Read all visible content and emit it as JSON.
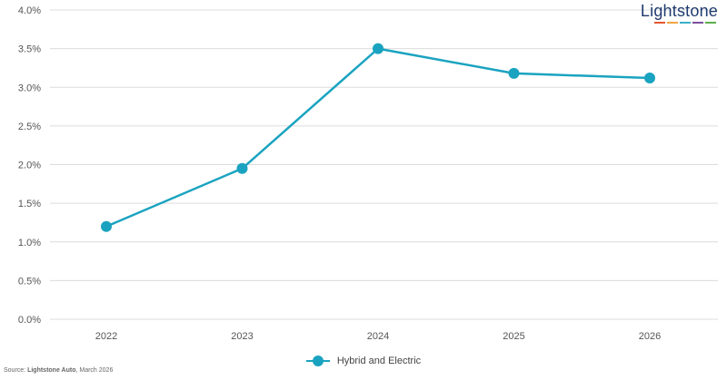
{
  "brand": {
    "name": "Lightstone",
    "underline_colors": [
      "#e4572e",
      "#f2a541",
      "#3ab0c9",
      "#7c4d9e",
      "#5dae4b"
    ]
  },
  "source": {
    "prefix": "Source: ",
    "name": "Lightstone Auto",
    "suffix": ", March 2026"
  },
  "chart_data": {
    "type": "line",
    "title": "",
    "xlabel": "",
    "ylabel": "",
    "categories": [
      "2022",
      "2023",
      "2024",
      "2025",
      "2026"
    ],
    "series": [
      {
        "name": "Hybrid and Electric",
        "values": [
          1.2,
          1.95,
          3.5,
          3.18,
          3.12
        ],
        "color": "#1aa3c0"
      }
    ],
    "ylim": [
      0,
      4
    ],
    "yticks": [
      "0.0%",
      "0.5%",
      "1.0%",
      "1.5%",
      "2.0%",
      "2.5%",
      "3.0%",
      "3.5%",
      "4.0%"
    ],
    "grid": true,
    "legend_position": "bottom-center"
  }
}
